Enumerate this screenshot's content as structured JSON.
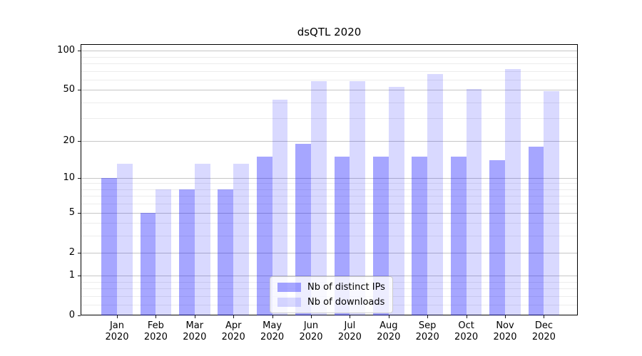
{
  "chart_data": {
    "type": "bar",
    "title": "dsQTL 2020",
    "categories": [
      "Jan",
      "Feb",
      "Mar",
      "Apr",
      "May",
      "Jun",
      "Jul",
      "Aug",
      "Sep",
      "Oct",
      "Nov",
      "Dec"
    ],
    "x_sublabel_year": "2020",
    "series": [
      {
        "name": "Nb of distinct IPs",
        "color": "#0000ff59",
        "values": [
          10,
          5,
          8,
          8,
          15,
          19,
          15,
          15,
          15,
          15,
          14,
          18
        ]
      },
      {
        "name": "Nb of downloads",
        "color": "#0000ff26",
        "values": [
          13,
          8,
          13,
          13,
          42,
          58,
          58,
          53,
          66,
          51,
          72,
          49
        ]
      }
    ],
    "y_scale": "log1p",
    "y_max": 112,
    "y_major_ticks": [
      0,
      1,
      2,
      5,
      10,
      20,
      50,
      100
    ],
    "y_minor_ticks": [
      0.2,
      0.4,
      0.6,
      0.8,
      3,
      4,
      6,
      7,
      8,
      9,
      30,
      40,
      60,
      70,
      80,
      90
    ],
    "ylim": [
      0,
      112
    ],
    "grid": "on",
    "legend_position": "lower center",
    "colors": {
      "major_grid": "#c6c6c6",
      "minor_grid": "#ececec",
      "spine": "#000000",
      "bar_base": "#0000ff"
    }
  }
}
